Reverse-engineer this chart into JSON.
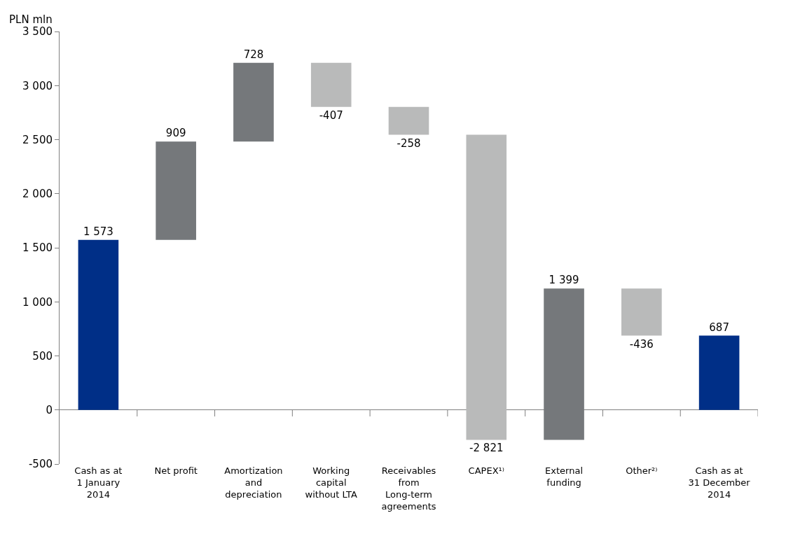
{
  "chart_data": {
    "type": "bar",
    "ylabel": "PLN mln",
    "categories": [
      "Cash as at\n1 January\n2014",
      "Net profit",
      "Amortization\nand\ndepreciation",
      "Working\ncapital\nwithout LTA",
      "Receivables\nfrom\nLong-term\nagreements",
      "CAPEX¹⁾",
      "External\nfunding",
      "Other²⁾",
      "Cash as at\n31 December\n2014"
    ],
    "values": [
      1573,
      909,
      728,
      -407,
      -258,
      -2821,
      1399,
      -436,
      687
    ],
    "base": [
      0,
      1573,
      2482,
      3210,
      2803,
      2545,
      -276,
      1123,
      0
    ],
    "colors": [
      "#002f87",
      "#75787b",
      "#75787b",
      "#b9baba",
      "#b9baba",
      "#b9baba",
      "#75787b",
      "#b9baba",
      "#002f87"
    ],
    "value_labels": [
      "1 573",
      "909",
      "728",
      "-407",
      "-258",
      "-2 821",
      "1 399",
      "-436",
      "687"
    ],
    "ylim": [
      -500,
      3500
    ],
    "yticks": [
      {
        "value": -500,
        "label": "-500"
      },
      {
        "value": 0,
        "label": "0"
      },
      {
        "value": 500,
        "label": "500"
      },
      {
        "value": 1000,
        "label": "1 000"
      },
      {
        "value": 1500,
        "label": "1 500"
      },
      {
        "value": 2000,
        "label": "2 000"
      },
      {
        "value": 2500,
        "label": "2 500"
      },
      {
        "value": 3000,
        "label": "3 000"
      },
      {
        "value": 3500,
        "label": "3 500"
      }
    ]
  }
}
